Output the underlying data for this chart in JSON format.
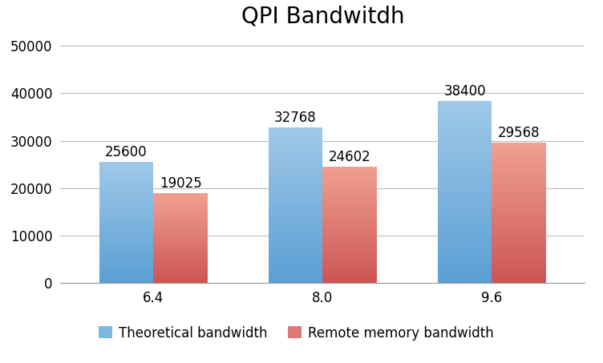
{
  "title": "QPI Bandwitdh",
  "categories": [
    "6.4",
    "8.0",
    "9.6"
  ],
  "theoretical": [
    25600,
    32768,
    38400
  ],
  "remote": [
    19025,
    24602,
    29568
  ],
  "theo_color_light": "#9fc8e8",
  "theo_color_dark": "#5b9fd4",
  "rem_color_light": "#f0a090",
  "rem_color_dark": "#cc5555",
  "ylim": [
    0,
    52000
  ],
  "yticks": [
    0,
    10000,
    20000,
    30000,
    40000,
    50000
  ],
  "bar_width": 0.32,
  "legend_labels": [
    "Theoretical bandwidth",
    "Remote memory bandwidth"
  ],
  "background_color": "#ffffff",
  "title_fontsize": 20,
  "tick_fontsize": 12,
  "label_fontsize": 12,
  "annotation_fontsize": 12
}
